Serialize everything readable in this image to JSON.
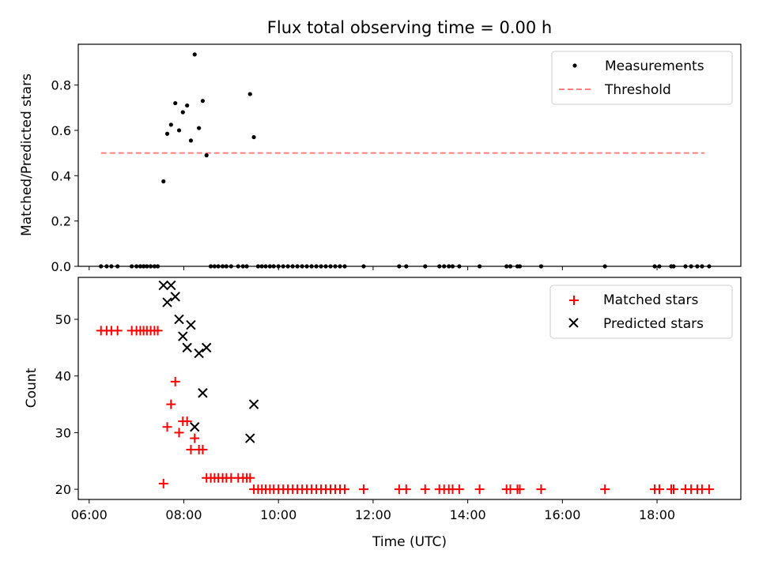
{
  "chart_data": [
    {
      "type": "scatter",
      "title": "Flux total observing time = 0.00 h",
      "xlabel": "",
      "ylabel": "Matched/Predicted stars",
      "xlim": [
        5.77,
        19.77
      ],
      "ylim": [
        0,
        0.98
      ],
      "yticks": [
        0.0,
        0.2,
        0.4,
        0.6,
        0.8
      ],
      "ytick_labels": [
        "0.0",
        "0.2",
        "0.4",
        "0.6",
        "0.8"
      ],
      "legend_position": "top-right",
      "legend": [
        "Measurements",
        "Threshold"
      ],
      "colors": {
        "measurements": "#000000",
        "threshold": "#ff7f7f"
      },
      "threshold": {
        "name": "Threshold",
        "y": 0.5,
        "x_range": [
          6.25,
          19.0
        ]
      },
      "series": [
        {
          "name": "Measurements",
          "points": [
            [
              6.25,
              0
            ],
            [
              6.37,
              0
            ],
            [
              6.47,
              0
            ],
            [
              6.6,
              0
            ],
            [
              6.9,
              0
            ],
            [
              7.0,
              0
            ],
            [
              7.08,
              0
            ],
            [
              7.15,
              0
            ],
            [
              7.22,
              0
            ],
            [
              7.3,
              0
            ],
            [
              7.38,
              0
            ],
            [
              7.45,
              0
            ],
            [
              7.57,
              0.375
            ],
            [
              7.65,
              0.585
            ],
            [
              7.73,
              0.625
            ],
            [
              7.82,
              0.72
            ],
            [
              7.9,
              0.6
            ],
            [
              7.98,
              0.68
            ],
            [
              8.07,
              0.71
            ],
            [
              8.15,
              0.555
            ],
            [
              8.23,
              0.935
            ],
            [
              8.32,
              0.61
            ],
            [
              8.4,
              0.73
            ],
            [
              8.48,
              0.49
            ],
            [
              8.57,
              0
            ],
            [
              8.65,
              0
            ],
            [
              8.73,
              0
            ],
            [
              8.82,
              0
            ],
            [
              8.9,
              0
            ],
            [
              9.0,
              0
            ],
            [
              9.15,
              0
            ],
            [
              9.25,
              0
            ],
            [
              9.33,
              0
            ],
            [
              9.4,
              0.76
            ],
            [
              9.48,
              0.57
            ],
            [
              9.57,
              0
            ],
            [
              9.65,
              0
            ],
            [
              9.73,
              0
            ],
            [
              9.82,
              0
            ],
            [
              9.9,
              0
            ],
            [
              10.0,
              0
            ],
            [
              10.1,
              0
            ],
            [
              10.2,
              0
            ],
            [
              10.3,
              0
            ],
            [
              10.4,
              0
            ],
            [
              10.5,
              0
            ],
            [
              10.6,
              0
            ],
            [
              10.7,
              0
            ],
            [
              10.8,
              0
            ],
            [
              10.9,
              0
            ],
            [
              11.0,
              0
            ],
            [
              11.1,
              0
            ],
            [
              11.2,
              0
            ],
            [
              11.3,
              0
            ],
            [
              11.4,
              0
            ],
            [
              11.8,
              0
            ],
            [
              12.55,
              0
            ],
            [
              12.7,
              0
            ],
            [
              13.1,
              0
            ],
            [
              13.4,
              0
            ],
            [
              13.5,
              0
            ],
            [
              13.6,
              0
            ],
            [
              13.68,
              0
            ],
            [
              13.82,
              0
            ],
            [
              14.25,
              0
            ],
            [
              14.82,
              0
            ],
            [
              14.9,
              0
            ],
            [
              15.05,
              0
            ],
            [
              15.1,
              0
            ],
            [
              15.55,
              0
            ],
            [
              16.9,
              0
            ],
            [
              17.95,
              0
            ],
            [
              18.05,
              0
            ],
            [
              18.3,
              0
            ],
            [
              18.35,
              0
            ],
            [
              18.6,
              0
            ],
            [
              18.72,
              0
            ],
            [
              18.85,
              0
            ],
            [
              18.95,
              0
            ],
            [
              19.1,
              0
            ]
          ]
        }
      ]
    },
    {
      "type": "scatter",
      "title": "",
      "xlabel": "Time (UTC)",
      "ylabel": "Count",
      "xlim": [
        5.77,
        19.77
      ],
      "ylim": [
        18.2,
        57.4
      ],
      "xticks": [
        6,
        8,
        10,
        12,
        14,
        16,
        18
      ],
      "xtick_labels": [
        "06:00",
        "08:00",
        "10:00",
        "12:00",
        "14:00",
        "16:00",
        "18:00"
      ],
      "yticks": [
        20,
        30,
        40,
        50
      ],
      "ytick_labels": [
        "20",
        "30",
        "40",
        "50"
      ],
      "legend_position": "top-right",
      "legend": [
        "Matched stars",
        "Predicted stars"
      ],
      "colors": {
        "matched": "#ff0000",
        "predicted": "#000000"
      },
      "series": [
        {
          "name": "Matched stars",
          "marker": "+",
          "points": [
            [
              6.25,
              48
            ],
            [
              6.37,
              48
            ],
            [
              6.47,
              48
            ],
            [
              6.6,
              48
            ],
            [
              6.9,
              48
            ],
            [
              7.0,
              48
            ],
            [
              7.08,
              48
            ],
            [
              7.15,
              48
            ],
            [
              7.22,
              48
            ],
            [
              7.3,
              48
            ],
            [
              7.38,
              48
            ],
            [
              7.45,
              48
            ],
            [
              7.57,
              21
            ],
            [
              7.65,
              31
            ],
            [
              7.73,
              35
            ],
            [
              7.82,
              39
            ],
            [
              7.9,
              30
            ],
            [
              7.98,
              32
            ],
            [
              8.07,
              32
            ],
            [
              8.15,
              27
            ],
            [
              8.23,
              29
            ],
            [
              8.32,
              27
            ],
            [
              8.4,
              27
            ],
            [
              8.48,
              22
            ],
            [
              8.57,
              22
            ],
            [
              8.65,
              22
            ],
            [
              8.73,
              22
            ],
            [
              8.82,
              22
            ],
            [
              8.9,
              22
            ],
            [
              9.0,
              22
            ],
            [
              9.15,
              22
            ],
            [
              9.25,
              22
            ],
            [
              9.33,
              22
            ],
            [
              9.4,
              22
            ],
            [
              9.48,
              20
            ],
            [
              9.57,
              20
            ],
            [
              9.65,
              20
            ],
            [
              9.73,
              20
            ],
            [
              9.82,
              20
            ],
            [
              9.9,
              20
            ],
            [
              10.0,
              20
            ],
            [
              10.1,
              20
            ],
            [
              10.2,
              20
            ],
            [
              10.3,
              20
            ],
            [
              10.4,
              20
            ],
            [
              10.5,
              20
            ],
            [
              10.6,
              20
            ],
            [
              10.7,
              20
            ],
            [
              10.8,
              20
            ],
            [
              10.9,
              20
            ],
            [
              11.0,
              20
            ],
            [
              11.1,
              20
            ],
            [
              11.2,
              20
            ],
            [
              11.3,
              20
            ],
            [
              11.4,
              20
            ],
            [
              11.8,
              20
            ],
            [
              12.55,
              20
            ],
            [
              12.7,
              20
            ],
            [
              13.1,
              20
            ],
            [
              13.4,
              20
            ],
            [
              13.5,
              20
            ],
            [
              13.6,
              20
            ],
            [
              13.68,
              20
            ],
            [
              13.82,
              20
            ],
            [
              14.25,
              20
            ],
            [
              14.82,
              20
            ],
            [
              14.9,
              20
            ],
            [
              15.05,
              20
            ],
            [
              15.1,
              20
            ],
            [
              15.55,
              20
            ],
            [
              16.9,
              20
            ],
            [
              17.95,
              20
            ],
            [
              18.05,
              20
            ],
            [
              18.3,
              20
            ],
            [
              18.35,
              20
            ],
            [
              18.6,
              20
            ],
            [
              18.72,
              20
            ],
            [
              18.85,
              20
            ],
            [
              18.95,
              20
            ],
            [
              19.1,
              20
            ]
          ]
        },
        {
          "name": "Predicted stars",
          "marker": "x",
          "points": [
            [
              7.57,
              56
            ],
            [
              7.65,
              53
            ],
            [
              7.73,
              56
            ],
            [
              7.82,
              54
            ],
            [
              7.9,
              50
            ],
            [
              7.98,
              47
            ],
            [
              8.07,
              45
            ],
            [
              8.15,
              49
            ],
            [
              8.23,
              31
            ],
            [
              8.32,
              44
            ],
            [
              8.4,
              37
            ],
            [
              8.48,
              45
            ],
            [
              9.4,
              29
            ],
            [
              9.48,
              35
            ]
          ]
        }
      ]
    }
  ]
}
